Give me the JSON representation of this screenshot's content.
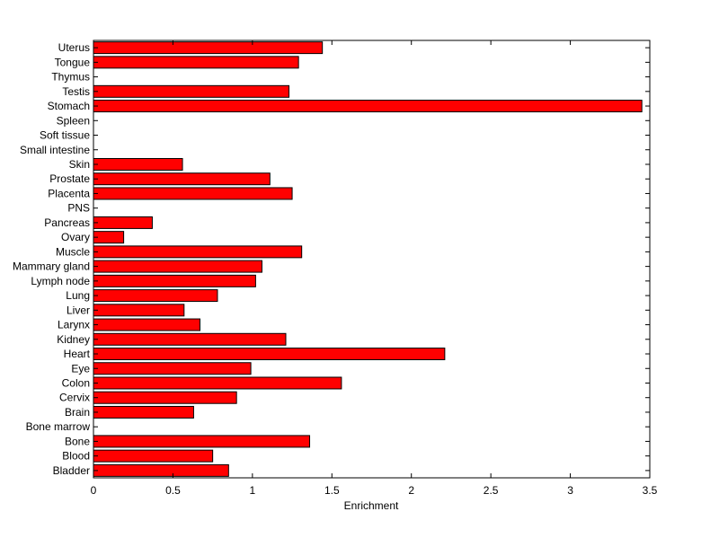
{
  "chart_data": {
    "type": "bar",
    "orientation": "horizontal",
    "title": "",
    "xlabel": "Enrichment",
    "ylabel": "",
    "xlim": [
      0,
      3.5
    ],
    "xticks": [
      "0",
      "0.5",
      "1",
      "1.5",
      "2",
      "2.5",
      "3",
      "3.5"
    ],
    "grid": false,
    "legend": "none",
    "bar_color": "#ff0000",
    "edge_color": "#000000",
    "categories": [
      "Uterus",
      "Tongue",
      "Thymus",
      "Testis",
      "Stomach",
      "Spleen",
      "Soft tissue",
      "Small intestine",
      "Skin",
      "Prostate",
      "Placenta",
      "PNS",
      "Pancreas",
      "Ovary",
      "Muscle",
      "Mammary gland",
      "Lymph node",
      "Lung",
      "Liver",
      "Larynx",
      "Kidney",
      "Heart",
      "Eye",
      "Colon",
      "Cervix",
      "Brain",
      "Bone marrow",
      "Bone",
      "Blood",
      "Bladder"
    ],
    "values": [
      1.44,
      1.29,
      0,
      1.23,
      3.45,
      0,
      0,
      0,
      0.56,
      1.11,
      1.25,
      0,
      0.37,
      0.19,
      1.31,
      1.06,
      1.02,
      0.78,
      0.57,
      0.67,
      1.21,
      2.21,
      0.99,
      1.56,
      0.9,
      0.63,
      0,
      1.36,
      0.75,
      0.85
    ]
  }
}
